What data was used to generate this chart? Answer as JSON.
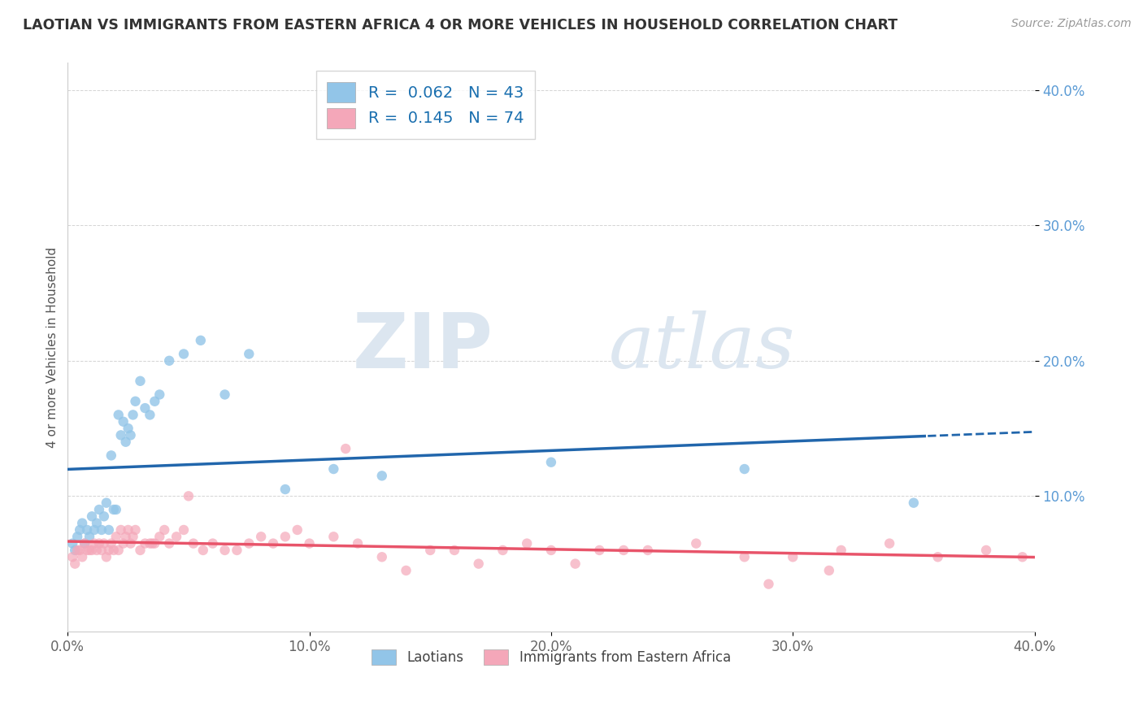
{
  "title": "LAOTIAN VS IMMIGRANTS FROM EASTERN AFRICA 4 OR MORE VEHICLES IN HOUSEHOLD CORRELATION CHART",
  "source_text": "Source: ZipAtlas.com",
  "ylabel": "4 or more Vehicles in Household",
  "legend_laotian_label": "Laotians",
  "legend_eastern_africa_label": "Immigrants from Eastern Africa",
  "R_laotian": 0.062,
  "N_laotian": 43,
  "R_eastern_africa": 0.145,
  "N_eastern_africa": 74,
  "xlim": [
    0.0,
    0.4
  ],
  "ylim": [
    0.0,
    0.42
  ],
  "xtick_vals": [
    0.0,
    0.1,
    0.2,
    0.3,
    0.4
  ],
  "ytick_vals": [
    0.1,
    0.2,
    0.3,
    0.4
  ],
  "color_laotian": "#92c5e8",
  "color_eastern_africa": "#f4a7b9",
  "line_color_laotian": "#2166ac",
  "line_color_eastern_africa": "#e8546a",
  "watermark_zip": "ZIP",
  "watermark_atlas": "atlas",
  "watermark_color": "#dce6f0",
  "laotian_x": [
    0.002,
    0.003,
    0.004,
    0.005,
    0.006,
    0.007,
    0.008,
    0.009,
    0.01,
    0.011,
    0.012,
    0.013,
    0.014,
    0.015,
    0.016,
    0.017,
    0.018,
    0.019,
    0.02,
    0.021,
    0.022,
    0.023,
    0.024,
    0.025,
    0.026,
    0.027,
    0.028,
    0.03,
    0.032,
    0.034,
    0.036,
    0.038,
    0.042,
    0.048,
    0.055,
    0.065,
    0.075,
    0.09,
    0.11,
    0.13,
    0.2,
    0.28,
    0.35
  ],
  "laotian_y": [
    0.065,
    0.06,
    0.07,
    0.075,
    0.08,
    0.065,
    0.075,
    0.07,
    0.085,
    0.075,
    0.08,
    0.09,
    0.075,
    0.085,
    0.095,
    0.075,
    0.13,
    0.09,
    0.09,
    0.16,
    0.145,
    0.155,
    0.14,
    0.15,
    0.145,
    0.16,
    0.17,
    0.185,
    0.165,
    0.16,
    0.17,
    0.175,
    0.2,
    0.205,
    0.215,
    0.175,
    0.205,
    0.105,
    0.12,
    0.115,
    0.125,
    0.12,
    0.095
  ],
  "eastern_africa_x": [
    0.002,
    0.003,
    0.004,
    0.005,
    0.006,
    0.007,
    0.008,
    0.009,
    0.01,
    0.011,
    0.012,
    0.013,
    0.014,
    0.015,
    0.016,
    0.017,
    0.018,
    0.019,
    0.02,
    0.021,
    0.022,
    0.023,
    0.024,
    0.025,
    0.026,
    0.027,
    0.028,
    0.03,
    0.032,
    0.034,
    0.036,
    0.038,
    0.04,
    0.042,
    0.045,
    0.048,
    0.052,
    0.056,
    0.06,
    0.065,
    0.07,
    0.075,
    0.08,
    0.085,
    0.09,
    0.095,
    0.1,
    0.11,
    0.12,
    0.13,
    0.14,
    0.15,
    0.16,
    0.17,
    0.18,
    0.19,
    0.2,
    0.21,
    0.22,
    0.24,
    0.26,
    0.28,
    0.3,
    0.32,
    0.34,
    0.36,
    0.38,
    0.395,
    0.035,
    0.05,
    0.115,
    0.23,
    0.29,
    0.315
  ],
  "eastern_africa_y": [
    0.055,
    0.05,
    0.06,
    0.06,
    0.055,
    0.065,
    0.06,
    0.06,
    0.06,
    0.065,
    0.06,
    0.065,
    0.06,
    0.065,
    0.055,
    0.06,
    0.065,
    0.06,
    0.07,
    0.06,
    0.075,
    0.065,
    0.07,
    0.075,
    0.065,
    0.07,
    0.075,
    0.06,
    0.065,
    0.065,
    0.065,
    0.07,
    0.075,
    0.065,
    0.07,
    0.075,
    0.065,
    0.06,
    0.065,
    0.06,
    0.06,
    0.065,
    0.07,
    0.065,
    0.07,
    0.075,
    0.065,
    0.07,
    0.065,
    0.055,
    0.045,
    0.06,
    0.06,
    0.05,
    0.06,
    0.065,
    0.06,
    0.05,
    0.06,
    0.06,
    0.065,
    0.055,
    0.055,
    0.06,
    0.065,
    0.055,
    0.06,
    0.055,
    0.065,
    0.1,
    0.135,
    0.06,
    0.035,
    0.045
  ]
}
